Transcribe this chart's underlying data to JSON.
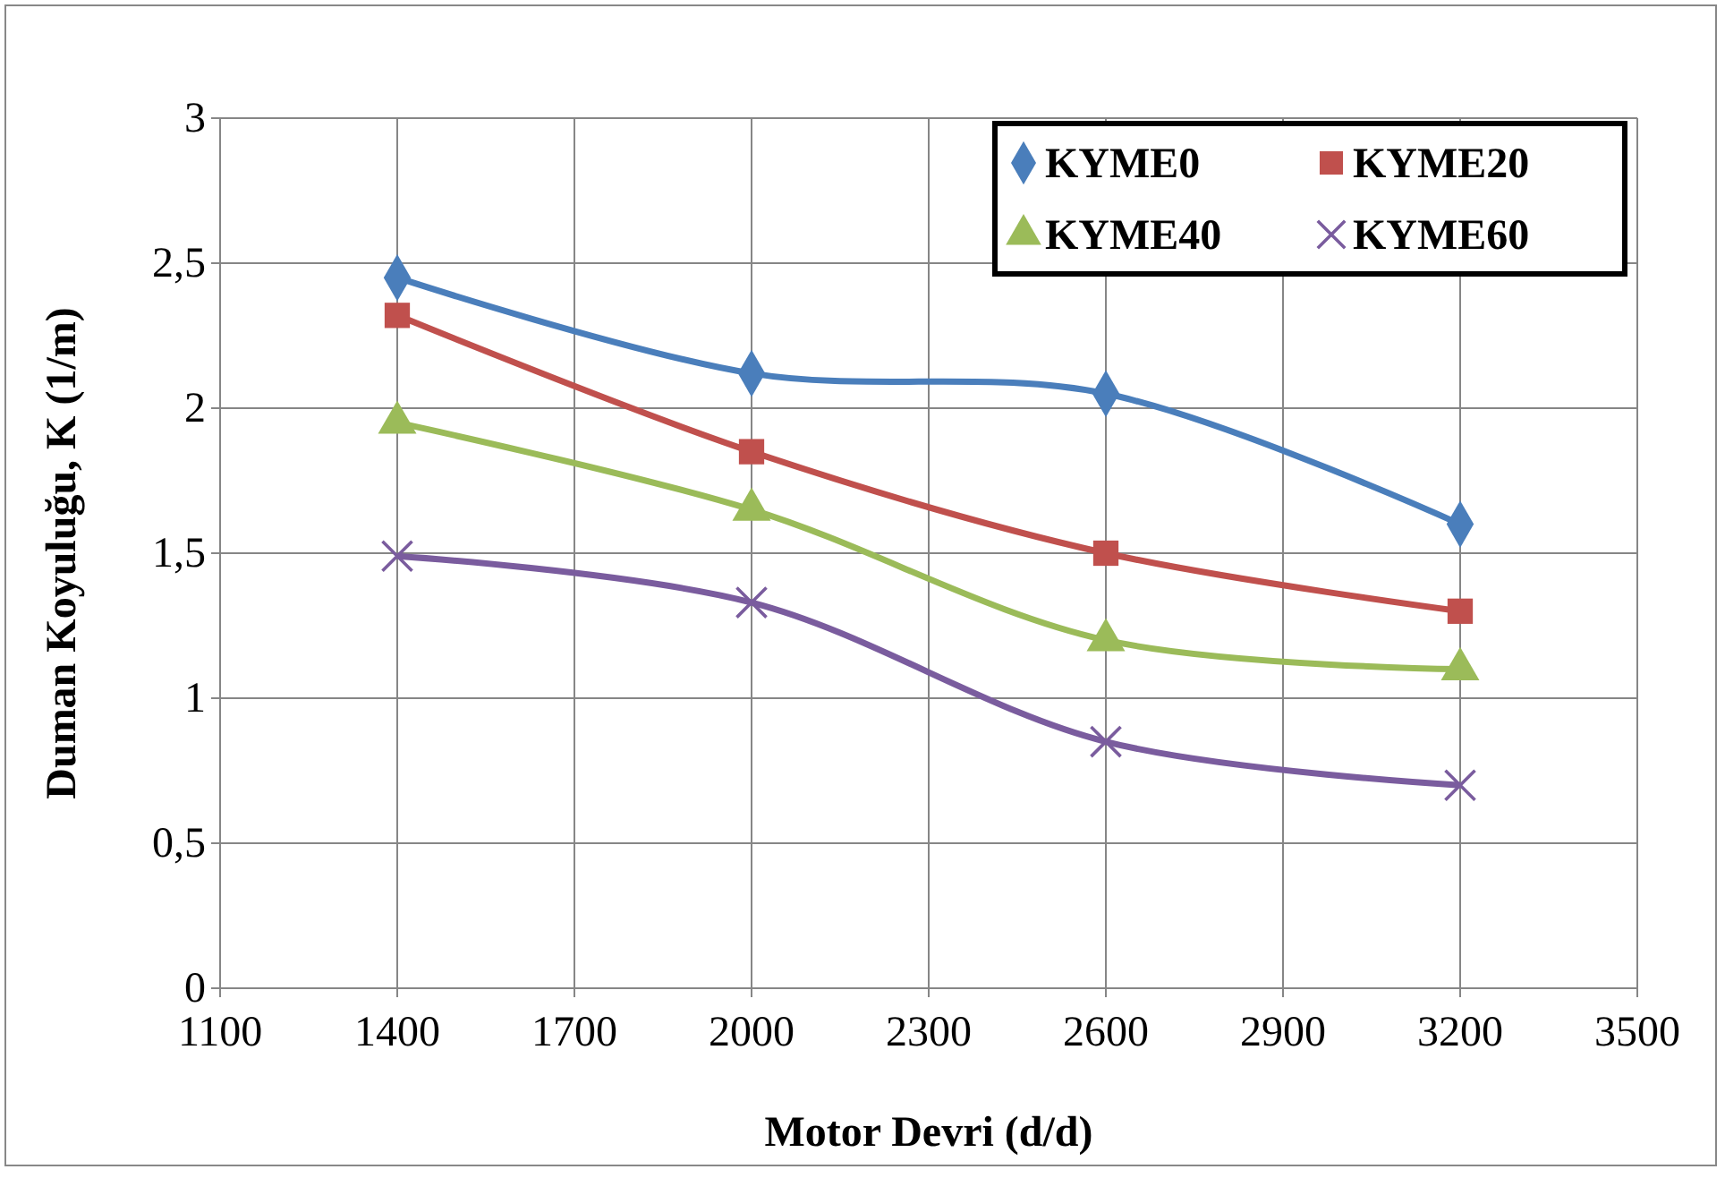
{
  "chart_data": {
    "type": "line",
    "xlabel": "Motor Devri (d/d)",
    "ylabel": "Duman Koyuluğu, K (1/m)",
    "x": [
      1400,
      2000,
      2600,
      3200
    ],
    "series": [
      {
        "name": "KYME0",
        "color": "#4a7ebb",
        "marker": "diamond",
        "values": [
          2.45,
          2.12,
          2.05,
          1.6
        ]
      },
      {
        "name": "KYME20",
        "color": "#c0504d",
        "marker": "square",
        "values": [
          2.32,
          1.85,
          1.5,
          1.3
        ]
      },
      {
        "name": "KYME40",
        "color": "#9bbb59",
        "marker": "triangle",
        "values": [
          1.95,
          1.65,
          1.2,
          1.1
        ]
      },
      {
        "name": "KYME60",
        "color": "#7a5c9e",
        "marker": "cross",
        "values": [
          1.49,
          1.33,
          0.85,
          0.7
        ]
      }
    ],
    "xlim": [
      1100,
      3500
    ],
    "xticks": [
      1100,
      1400,
      1700,
      2000,
      2300,
      2600,
      2900,
      3200,
      3500
    ],
    "ylim": [
      0,
      3
    ],
    "yticks": [
      0,
      {
        "value": 0.5,
        "label": "0,5"
      },
      1,
      {
        "value": 1.5,
        "label": "1,5"
      },
      2,
      {
        "value": 2.5,
        "label": "2,5"
      },
      3
    ],
    "grid": true,
    "legend": "top right",
    "line_style": "solid"
  }
}
